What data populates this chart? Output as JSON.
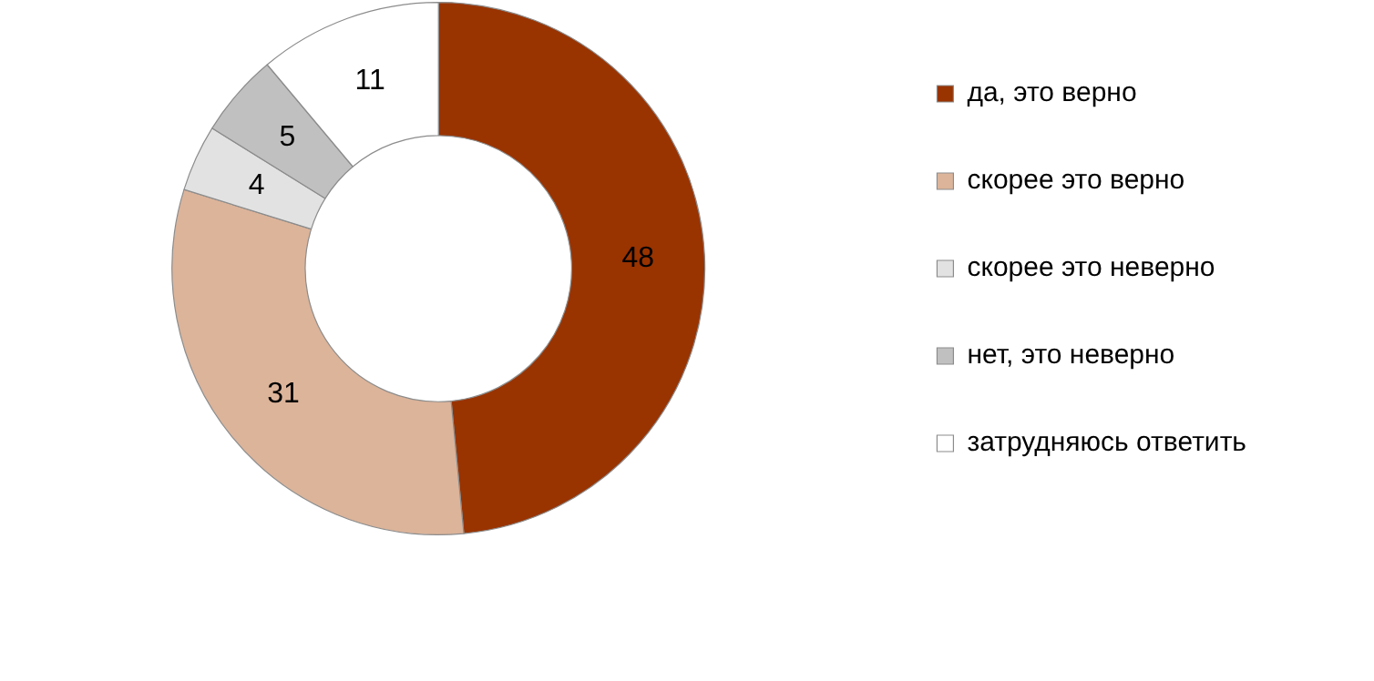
{
  "chart_data": {
    "type": "donut",
    "categories": [
      "да, это верно",
      "скорее это верно",
      "скорее это неверно",
      "нет, это неверно",
      "затрудняюсь ответить"
    ],
    "values": [
      48,
      31,
      4,
      5,
      11
    ],
    "colors": [
      "#993300",
      "#dcb49a",
      "#e2e2e2",
      "#c0c0c0",
      "#ffffff"
    ],
    "data_labels": true,
    "legend": "right"
  }
}
